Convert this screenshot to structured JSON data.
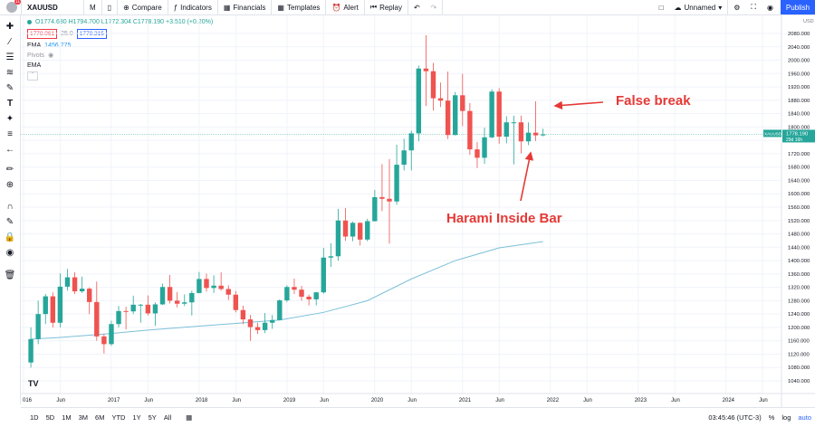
{
  "topbar": {
    "notification_count": "11",
    "symbol": "XAUUSD",
    "interval": "M",
    "compare": "Compare",
    "indicators": "Indicators",
    "financials": "Financials",
    "templates": "Templates",
    "alert": "Alert",
    "replay": "Replay",
    "layout_name": "Unnamed",
    "publish": "Publish"
  },
  "legend": {
    "ohlc": "O1774.680 H1794.700 L1772.304 C1778.190 +3.510 (+0.20%)",
    "sell_price": "1778.061",
    "spread": "25.0",
    "buy_price": "1778.315",
    "ema_label": "EMA",
    "ema_value": "1456.775",
    "pivots_label": "Pivots",
    "ema2_label": "EMA"
  },
  "price_axis": {
    "currency": "USD",
    "ticks": [
      "2080.000",
      "2040.000",
      "2000.000",
      "1960.000",
      "1920.000",
      "1880.000",
      "1840.000",
      "1800.000",
      "1760.000",
      "1720.000",
      "1680.000",
      "1640.000",
      "1600.000",
      "1560.000",
      "1520.000",
      "1480.000",
      "1440.000",
      "1400.000",
      "1360.000",
      "1320.000",
      "1280.000",
      "1240.000",
      "1200.000",
      "1160.000",
      "1120.000",
      "1080.000",
      "1040.000"
    ],
    "tag_symbol": "XAUUSD",
    "tag_price": "1778.190",
    "tag_countdown": "29d 16h"
  },
  "time_axis": {
    "labels": [
      "016",
      "Jun",
      "2017",
      "Jun",
      "2018",
      "Jun",
      "2019",
      "Jun",
      "2020",
      "Jun",
      "2021",
      "Jun",
      "2022",
      "Jun",
      "2023",
      "Jun",
      "2024",
      "Jun"
    ]
  },
  "annotations": {
    "false_break": "False break",
    "harami": "Harami Inside Bar"
  },
  "bottombar": {
    "ranges": [
      "1D",
      "5D",
      "1M",
      "3M",
      "6M",
      "YTD",
      "1Y",
      "5Y",
      "All"
    ],
    "clock": "03:45:46 (UTC-3)",
    "percent": "%",
    "log": "log",
    "auto": "auto"
  },
  "colors": {
    "up": "#26a69a",
    "down": "#ef5350",
    "ema": "#7cc0d8",
    "annotation": "#e53935"
  },
  "chart_data": {
    "type": "candlestick",
    "interval": "monthly",
    "symbol": "XAUUSD",
    "ylim": [
      1020,
      2100
    ],
    "candles": [
      {
        "m": "2016-02",
        "o": 1095,
        "h": 1200,
        "l": 1080,
        "c": 1165
      },
      {
        "m": "2016-03",
        "o": 1165,
        "h": 1280,
        "l": 1150,
        "c": 1240
      },
      {
        "m": "2016-04",
        "o": 1240,
        "h": 1300,
        "l": 1210,
        "c": 1293
      },
      {
        "m": "2016-05",
        "o": 1293,
        "h": 1305,
        "l": 1200,
        "c": 1214
      },
      {
        "m": "2016-06",
        "o": 1214,
        "h": 1362,
        "l": 1200,
        "c": 1322
      },
      {
        "m": "2016-07",
        "o": 1322,
        "h": 1375,
        "l": 1310,
        "c": 1350
      },
      {
        "m": "2016-08",
        "o": 1350,
        "h": 1365,
        "l": 1300,
        "c": 1308
      },
      {
        "m": "2016-09",
        "o": 1308,
        "h": 1352,
        "l": 1303,
        "c": 1316
      },
      {
        "m": "2016-10",
        "o": 1316,
        "h": 1320,
        "l": 1240,
        "c": 1276
      },
      {
        "m": "2016-11",
        "o": 1276,
        "h": 1337,
        "l": 1160,
        "c": 1173
      },
      {
        "m": "2016-12",
        "o": 1173,
        "h": 1180,
        "l": 1122,
        "c": 1150
      },
      {
        "m": "2017-01",
        "o": 1150,
        "h": 1220,
        "l": 1145,
        "c": 1210
      },
      {
        "m": "2017-02",
        "o": 1210,
        "h": 1264,
        "l": 1200,
        "c": 1249
      },
      {
        "m": "2017-03",
        "o": 1249,
        "h": 1262,
        "l": 1194,
        "c": 1248
      },
      {
        "m": "2017-04",
        "o": 1248,
        "h": 1295,
        "l": 1240,
        "c": 1268
      },
      {
        "m": "2017-05",
        "o": 1268,
        "h": 1270,
        "l": 1214,
        "c": 1268
      },
      {
        "m": "2017-06",
        "o": 1268,
        "h": 1296,
        "l": 1236,
        "c": 1242
      },
      {
        "m": "2017-07",
        "o": 1242,
        "h": 1275,
        "l": 1205,
        "c": 1269
      },
      {
        "m": "2017-08",
        "o": 1269,
        "h": 1331,
        "l": 1267,
        "c": 1321
      },
      {
        "m": "2017-09",
        "o": 1321,
        "h": 1357,
        "l": 1272,
        "c": 1280
      },
      {
        "m": "2017-10",
        "o": 1280,
        "h": 1306,
        "l": 1260,
        "c": 1271
      },
      {
        "m": "2017-11",
        "o": 1271,
        "h": 1299,
        "l": 1264,
        "c": 1275
      },
      {
        "m": "2017-12",
        "o": 1275,
        "h": 1310,
        "l": 1236,
        "c": 1303
      },
      {
        "m": "2018-01",
        "o": 1303,
        "h": 1366,
        "l": 1302,
        "c": 1345
      },
      {
        "m": "2018-02",
        "o": 1345,
        "h": 1361,
        "l": 1307,
        "c": 1318
      },
      {
        "m": "2018-03",
        "o": 1318,
        "h": 1356,
        "l": 1303,
        "c": 1325
      },
      {
        "m": "2018-04",
        "o": 1325,
        "h": 1365,
        "l": 1310,
        "c": 1315
      },
      {
        "m": "2018-05",
        "o": 1315,
        "h": 1326,
        "l": 1282,
        "c": 1298
      },
      {
        "m": "2018-06",
        "o": 1298,
        "h": 1309,
        "l": 1245,
        "c": 1252
      },
      {
        "m": "2018-07",
        "o": 1252,
        "h": 1265,
        "l": 1210,
        "c": 1224
      },
      {
        "m": "2018-08",
        "o": 1224,
        "h": 1237,
        "l": 1160,
        "c": 1201
      },
      {
        "m": "2018-09",
        "o": 1201,
        "h": 1214,
        "l": 1180,
        "c": 1192
      },
      {
        "m": "2018-10",
        "o": 1192,
        "h": 1243,
        "l": 1183,
        "c": 1214
      },
      {
        "m": "2018-11",
        "o": 1214,
        "h": 1237,
        "l": 1196,
        "c": 1222
      },
      {
        "m": "2018-12",
        "o": 1222,
        "h": 1284,
        "l": 1221,
        "c": 1281
      },
      {
        "m": "2019-01",
        "o": 1281,
        "h": 1326,
        "l": 1276,
        "c": 1321
      },
      {
        "m": "2019-02",
        "o": 1321,
        "h": 1346,
        "l": 1300,
        "c": 1313
      },
      {
        "m": "2019-03",
        "o": 1313,
        "h": 1324,
        "l": 1280,
        "c": 1292
      },
      {
        "m": "2019-04",
        "o": 1292,
        "h": 1298,
        "l": 1266,
        "c": 1284
      },
      {
        "m": "2019-05",
        "o": 1284,
        "h": 1306,
        "l": 1266,
        "c": 1305
      },
      {
        "m": "2019-06",
        "o": 1305,
        "h": 1438,
        "l": 1301,
        "c": 1409
      },
      {
        "m": "2019-07",
        "o": 1409,
        "h": 1452,
        "l": 1381,
        "c": 1413
      },
      {
        "m": "2019-08",
        "o": 1413,
        "h": 1555,
        "l": 1400,
        "c": 1520
      },
      {
        "m": "2019-09",
        "o": 1520,
        "h": 1557,
        "l": 1459,
        "c": 1472
      },
      {
        "m": "2019-10",
        "o": 1472,
        "h": 1517,
        "l": 1458,
        "c": 1513
      },
      {
        "m": "2019-11",
        "o": 1513,
        "h": 1515,
        "l": 1445,
        "c": 1463
      },
      {
        "m": "2019-12",
        "o": 1463,
        "h": 1525,
        "l": 1458,
        "c": 1518
      },
      {
        "m": "2020-01",
        "o": 1518,
        "h": 1612,
        "l": 1517,
        "c": 1590
      },
      {
        "m": "2020-02",
        "o": 1590,
        "h": 1689,
        "l": 1548,
        "c": 1585
      },
      {
        "m": "2020-03",
        "o": 1585,
        "h": 1704,
        "l": 1451,
        "c": 1577
      },
      {
        "m": "2020-04",
        "o": 1577,
        "h": 1747,
        "l": 1567,
        "c": 1687
      },
      {
        "m": "2020-05",
        "o": 1687,
        "h": 1765,
        "l": 1670,
        "c": 1730
      },
      {
        "m": "2020-06",
        "o": 1730,
        "h": 1789,
        "l": 1670,
        "c": 1781
      },
      {
        "m": "2020-07",
        "o": 1781,
        "h": 1984,
        "l": 1757,
        "c": 1975
      },
      {
        "m": "2020-08",
        "o": 1975,
        "h": 2075,
        "l": 1863,
        "c": 1967
      },
      {
        "m": "2020-09",
        "o": 1967,
        "h": 1992,
        "l": 1849,
        "c": 1886
      },
      {
        "m": "2020-10",
        "o": 1886,
        "h": 1933,
        "l": 1860,
        "c": 1879
      },
      {
        "m": "2020-11",
        "o": 1879,
        "h": 1966,
        "l": 1764,
        "c": 1776
      },
      {
        "m": "2020-12",
        "o": 1776,
        "h": 1905,
        "l": 1775,
        "c": 1895
      },
      {
        "m": "2021-01",
        "o": 1895,
        "h": 1959,
        "l": 1803,
        "c": 1848
      },
      {
        "m": "2021-02",
        "o": 1848,
        "h": 1872,
        "l": 1717,
        "c": 1733
      },
      {
        "m": "2021-03",
        "o": 1733,
        "h": 1755,
        "l": 1677,
        "c": 1708
      },
      {
        "m": "2021-04",
        "o": 1708,
        "h": 1798,
        "l": 1690,
        "c": 1769
      },
      {
        "m": "2021-05",
        "o": 1769,
        "h": 1913,
        "l": 1766,
        "c": 1906
      },
      {
        "m": "2021-06",
        "o": 1906,
        "h": 1916,
        "l": 1750,
        "c": 1771
      },
      {
        "m": "2021-07",
        "o": 1771,
        "h": 1832,
        "l": 1751,
        "c": 1814
      },
      {
        "m": "2021-08",
        "o": 1814,
        "h": 1834,
        "l": 1688,
        "c": 1814
      },
      {
        "m": "2021-09",
        "o": 1814,
        "h": 1834,
        "l": 1721,
        "c": 1757
      },
      {
        "m": "2021-10",
        "o": 1757,
        "h": 1814,
        "l": 1746,
        "c": 1783
      },
      {
        "m": "2021-11",
        "o": 1783,
        "h": 1877,
        "l": 1758,
        "c": 1775
      },
      {
        "m": "2021-12",
        "o": 1775,
        "h": 1795,
        "l": 1772,
        "c": 1778
      }
    ],
    "ema": [
      {
        "m": "2016-02",
        "v": 1165
      },
      {
        "m": "2016-06",
        "v": 1170
      },
      {
        "m": "2016-12",
        "v": 1180
      },
      {
        "m": "2017-06",
        "v": 1192
      },
      {
        "m": "2017-12",
        "v": 1202
      },
      {
        "m": "2018-06",
        "v": 1212
      },
      {
        "m": "2018-12",
        "v": 1222
      },
      {
        "m": "2019-06",
        "v": 1245
      },
      {
        "m": "2019-12",
        "v": 1280
      },
      {
        "m": "2020-06",
        "v": 1345
      },
      {
        "m": "2020-12",
        "v": 1400
      },
      {
        "m": "2021-06",
        "v": 1438
      },
      {
        "m": "2021-12",
        "v": 1457
      }
    ],
    "current_price": 1778.19
  }
}
